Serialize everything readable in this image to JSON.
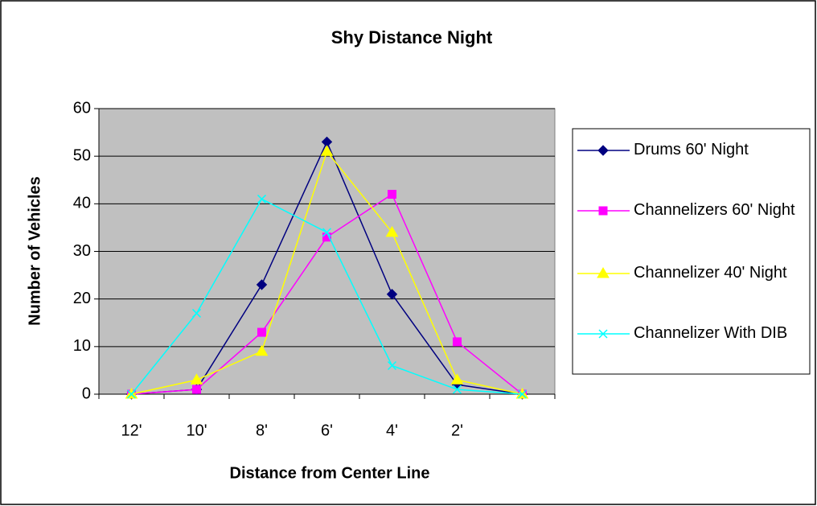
{
  "chart_data": {
    "type": "line",
    "title": "Shy Distance Night",
    "x_label": "Distance from Center Line",
    "y_label": "Number of Vehicles",
    "categories": [
      "12'",
      "10'",
      "8'",
      "6'",
      "4'",
      "2'",
      null
    ],
    "series": [
      {
        "name": "Drums 60' Night",
        "color": "#000080",
        "marker": "diamond",
        "values": [
          0,
          1,
          23,
          53,
          21,
          2,
          0
        ]
      },
      {
        "name": "Channelizers 60' Night",
        "color": "#ff00ff",
        "marker": "square",
        "values": [
          0,
          1,
          13,
          33,
          42,
          11,
          0
        ]
      },
      {
        "name": "Channelizer 40' Night",
        "color": "#ffff00",
        "marker": "triangle",
        "values": [
          0,
          3,
          9,
          51,
          34,
          3,
          0
        ]
      },
      {
        "name": "Channelizer With DIB",
        "color": "#00ffff",
        "marker": "x",
        "values": [
          0,
          17,
          41,
          34,
          6,
          1,
          0
        ]
      }
    ],
    "ylim": [
      0,
      60
    ],
    "yticks": [
      0,
      10,
      20,
      30,
      40,
      50,
      60
    ],
    "grid": true,
    "legend": "right"
  }
}
